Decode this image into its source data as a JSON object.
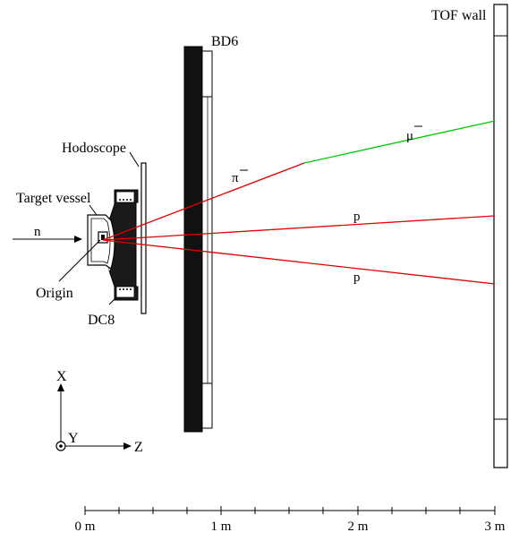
{
  "labels": {
    "tof_wall": "TOF wall",
    "bd6": "BD6",
    "hodoscope": "Hodoscope",
    "target_vessel": "Target vessel",
    "origin": "Origin",
    "dc8": "DC8",
    "beam": "n",
    "pion": "π",
    "muon": "μ",
    "proton_upper": "p",
    "proton_lower": "p",
    "minus": "−"
  },
  "axes": {
    "x": "X",
    "y": "Y",
    "z": "Z"
  },
  "scale": {
    "ticks": [
      "0 m",
      "1 m",
      "2 m",
      "3 m"
    ]
  },
  "colors": {
    "track_red": "#e00000",
    "track_green": "#00cc00",
    "ink": "#000000"
  }
}
